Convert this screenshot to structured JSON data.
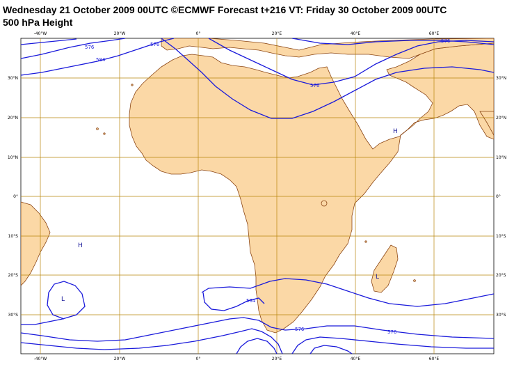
{
  "title": "Wednesday 21 October 2009 00UTC ©ECMWF Forecast t+216 VT: Friday 30 October 2009 00UTC",
  "subtitle": "500 hPa Height",
  "colors": {
    "land": "#fbd8a6",
    "coast": "#8b4513",
    "grid": "#b8860b",
    "contour": "#1a1adb",
    "label_text": "#1a1a9a"
  },
  "lon_labels": [
    "-40°W",
    "20°W",
    "0°",
    "20°E",
    "40°E",
    "60°E"
  ],
  "lat_labels": [
    "30°N",
    "20°N",
    "10°N",
    "0°",
    "10°S",
    "20°S",
    "30°S"
  ],
  "contour_labels": [
    "576",
    "584",
    "576",
    "576",
    "576",
    "584",
    "576",
    "576"
  ],
  "pressure_centers": [
    "H",
    "H",
    "L",
    "L"
  ]
}
